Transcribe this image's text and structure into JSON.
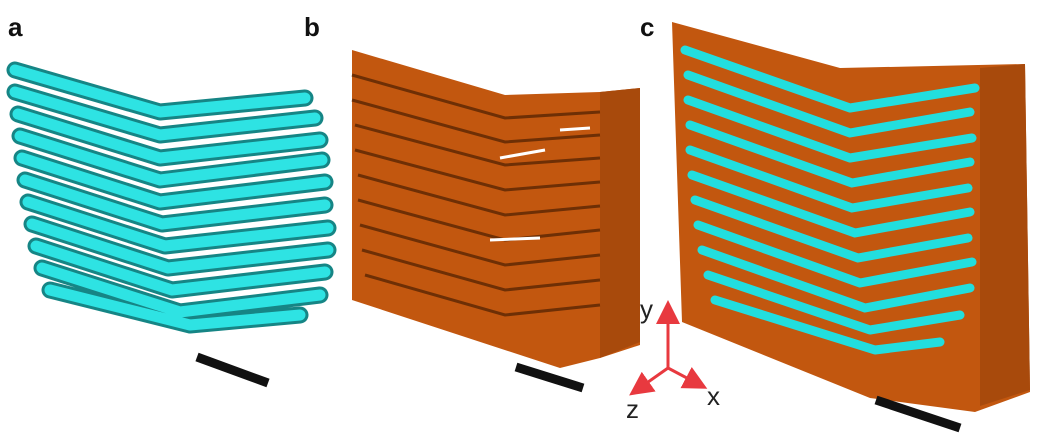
{
  "panels": [
    {
      "label": "a"
    },
    {
      "label": "b"
    },
    {
      "label": "c"
    }
  ],
  "axes": {
    "y": "y",
    "x": "x",
    "z": "z"
  }
}
